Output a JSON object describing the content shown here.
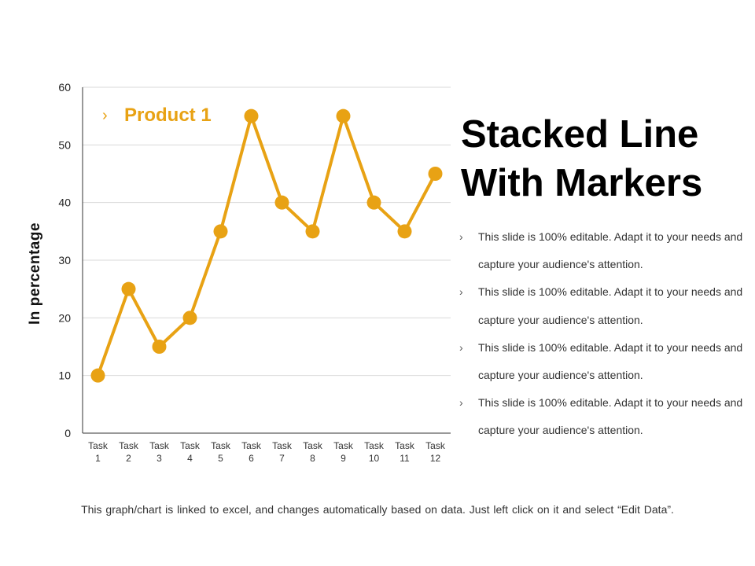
{
  "colors": {
    "series": "#E8A214",
    "grid": "#d9d9d9",
    "axis": "#333333"
  },
  "chart_data": {
    "type": "line",
    "categories": [
      [
        "Task",
        "1"
      ],
      [
        "Task",
        "2"
      ],
      [
        "Task",
        "3"
      ],
      [
        "Task",
        "4"
      ],
      [
        "Task",
        "5"
      ],
      [
        "Task",
        "6"
      ],
      [
        "Task",
        "7"
      ],
      [
        "Task",
        "8"
      ],
      [
        "Task",
        "9"
      ],
      [
        "Task",
        "10"
      ],
      [
        "Task",
        "11"
      ],
      [
        "Task",
        "12"
      ]
    ],
    "series": [
      {
        "name": "Product 1",
        "values": [
          10,
          25,
          15,
          20,
          35,
          55,
          40,
          35,
          55,
          40,
          35,
          45
        ]
      }
    ],
    "ylabel": "In percentage",
    "ylim": [
      0,
      60
    ],
    "yticks": [
      0,
      10,
      20,
      30,
      40,
      50,
      60
    ],
    "grid": true,
    "markers": true,
    "legend_position": "top-left inside"
  },
  "title": "Stacked Line With Markers",
  "bullets": [
    "This slide is 100% editable. Adapt it to your needs and capture your audience's attention.",
    "This slide is 100% editable. Adapt it to your needs and capture your audience's attention.",
    "This slide is 100% editable. Adapt it to your needs and capture your audience's attention.",
    "This slide is 100% editable. Adapt it to your needs and capture your audience's attention."
  ],
  "bullet_icon": "chevron-right-icon",
  "footer": "This graph/chart is linked to excel, and changes automatically based on data. Just left click on it and select “Edit Data”."
}
